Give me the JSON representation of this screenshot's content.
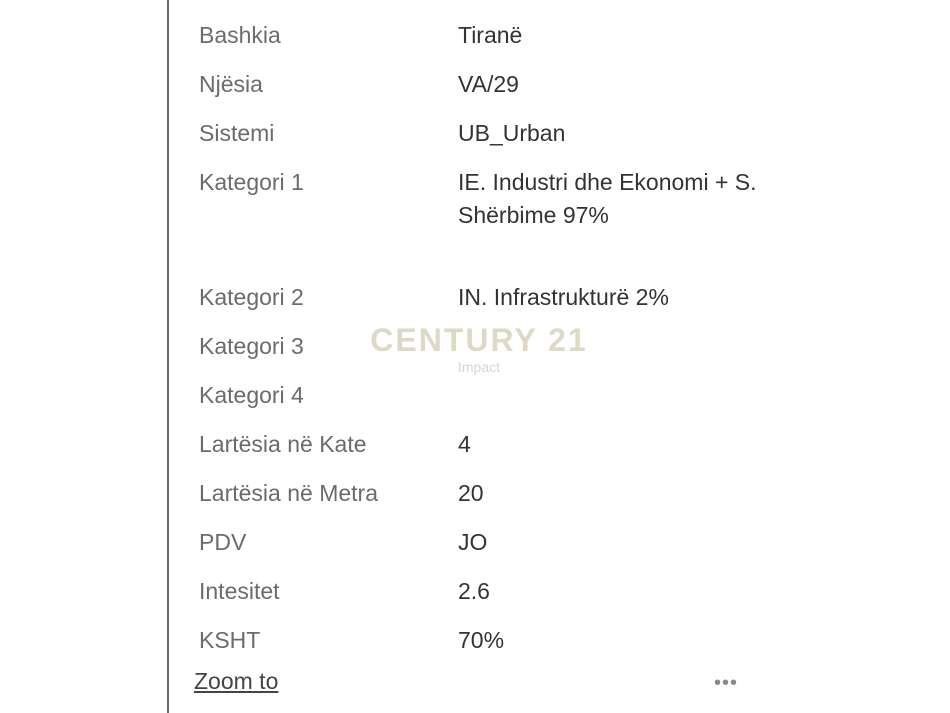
{
  "attributes": [
    {
      "label": "Bashkia",
      "value": "Tiranë"
    },
    {
      "label": "Njësia",
      "value": "VA/29"
    },
    {
      "label": "Sistemi",
      "value": "UB_Urban"
    },
    {
      "label": "Kategori 1",
      "value": "IE. Industri dhe Ekonomi + S. Shërbime 97%"
    },
    {
      "label": "Kategori 2",
      "value": "IN. Infrastrukturë 2%"
    },
    {
      "label": "Kategori 3",
      "value": ""
    },
    {
      "label": "Kategori 4",
      "value": ""
    },
    {
      "label": "Lartësia në Kate",
      "value": "4"
    },
    {
      "label": "Lartësia në Metra",
      "value": "20"
    },
    {
      "label": "PDV",
      "value": "JO"
    },
    {
      "label": "Intesitet",
      "value": "2.6"
    },
    {
      "label": "KSHT",
      "value": "70%"
    }
  ],
  "actions": {
    "zoom_to": "Zoom to",
    "more_icon": "ellipsis-icon",
    "more": "•••"
  },
  "watermark": {
    "title": "CENTURY 21",
    "subtitle": "Impact"
  }
}
